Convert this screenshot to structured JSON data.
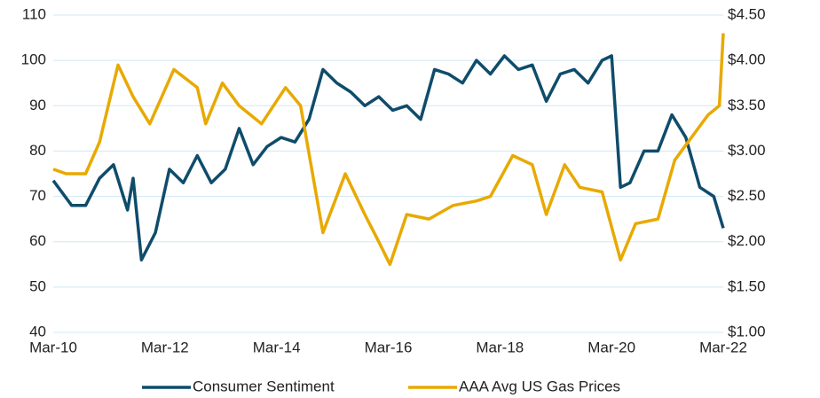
{
  "chart_data": {
    "type": "line",
    "series": [
      {
        "name": "Consumer Sentiment",
        "color": "#0f4c6b",
        "x": [
          2010.17,
          2010.5,
          2010.75,
          2011.0,
          2011.25,
          2011.5,
          2011.6,
          2011.75,
          2012.0,
          2012.25,
          2012.5,
          2012.75,
          2013.0,
          2013.25,
          2013.5,
          2013.75,
          2014.0,
          2014.25,
          2014.5,
          2014.75,
          2015.0,
          2015.25,
          2015.5,
          2015.75,
          2016.0,
          2016.25,
          2016.5,
          2016.75,
          2017.0,
          2017.25,
          2017.5,
          2017.75,
          2018.0,
          2018.25,
          2018.5,
          2018.75,
          2019.0,
          2019.25,
          2019.5,
          2019.75,
          2020.0,
          2020.17,
          2020.33,
          2020.5,
          2020.75,
          2021.0,
          2021.25,
          2021.5,
          2021.75,
          2022.0,
          2022.17
        ],
        "values": [
          73.5,
          68,
          68,
          74,
          77,
          67,
          74,
          56,
          62,
          76,
          73,
          79,
          73,
          76,
          85,
          77,
          81,
          83,
          82,
          87,
          98,
          95,
          93,
          90,
          92,
          89,
          90,
          87,
          98,
          97,
          95,
          100,
          97,
          101,
          98,
          99,
          91,
          97,
          98,
          95,
          100,
          101,
          72,
          73,
          80,
          80,
          88,
          83,
          72,
          70,
          63
        ]
      },
      {
        "name": "AAA Avg US Gas Prices",
        "color": "#e8a900",
        "axis": "y2",
        "x": [
          2010.17,
          2010.4,
          2010.75,
          2011.0,
          2011.33,
          2011.6,
          2011.9,
          2012.33,
          2012.75,
          2012.9,
          2013.2,
          2013.5,
          2013.9,
          2014.33,
          2014.6,
          2015.0,
          2015.4,
          2015.75,
          2016.0,
          2016.2,
          2016.5,
          2016.9,
          2017.33,
          2017.75,
          2018.0,
          2018.4,
          2018.75,
          2019.0,
          2019.33,
          2019.6,
          2020.0,
          2020.33,
          2020.6,
          2021.0,
          2021.3,
          2021.6,
          2021.9,
          2022.1,
          2022.17
        ],
        "values": [
          2.8,
          2.75,
          2.75,
          3.1,
          3.95,
          3.6,
          3.3,
          3.9,
          3.7,
          3.3,
          3.75,
          3.5,
          3.3,
          3.7,
          3.5,
          2.1,
          2.75,
          2.3,
          2.0,
          1.75,
          2.3,
          2.25,
          2.4,
          2.45,
          2.5,
          2.95,
          2.85,
          2.3,
          2.85,
          2.6,
          2.55,
          1.8,
          2.2,
          2.25,
          2.9,
          3.15,
          3.4,
          3.5,
          4.3
        ]
      }
    ],
    "xlim": [
      2010.17,
      2022.17
    ],
    "xticks": [
      {
        "value": 2010.17,
        "label": "Mar-10"
      },
      {
        "value": 2012.17,
        "label": "Mar-12"
      },
      {
        "value": 2014.17,
        "label": "Mar-14"
      },
      {
        "value": 2016.17,
        "label": "Mar-16"
      },
      {
        "value": 2018.17,
        "label": "Mar-18"
      },
      {
        "value": 2020.17,
        "label": "Mar-20"
      },
      {
        "value": 2022.17,
        "label": "Mar-22"
      }
    ],
    "ylim": [
      40,
      110
    ],
    "yticks": [
      40,
      50,
      60,
      70,
      80,
      90,
      100,
      110
    ],
    "y2lim": [
      1,
      4.5
    ],
    "y2ticks": [
      {
        "value": 1,
        "label": "$1.00"
      },
      {
        "value": 1.5,
        "label": "$1.50"
      },
      {
        "value": 2,
        "label": "$2.00"
      },
      {
        "value": 2.5,
        "label": "$2.50"
      },
      {
        "value": 3,
        "label": "$3.00"
      },
      {
        "value": 3.5,
        "label": "$3.50"
      },
      {
        "value": 4,
        "label": "$4.00"
      },
      {
        "value": 4.5,
        "label": "$4.50"
      }
    ],
    "grid": true,
    "legend": "bottom"
  }
}
